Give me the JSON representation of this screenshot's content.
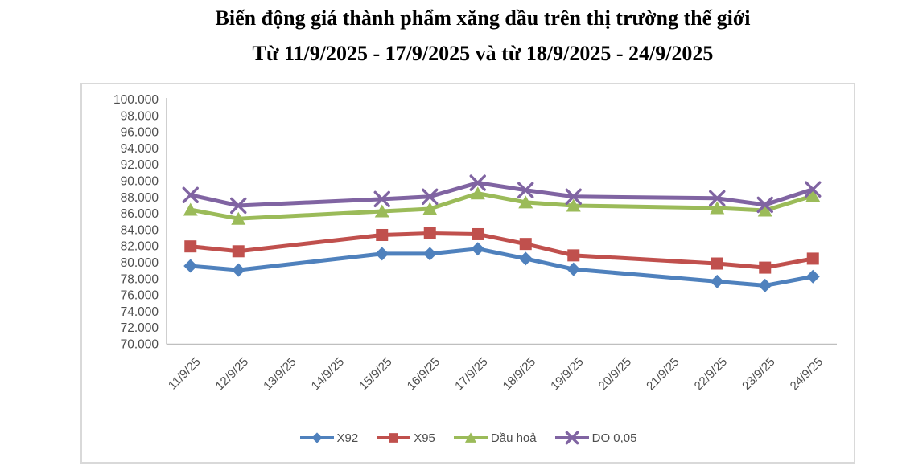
{
  "title": {
    "line1": "Biến động giá thành phẩm xăng dầu trên thị trường thế giới",
    "line2": "Từ 11/9/2025 - 17/9/2025 và từ 18/9/2025 - 24/9/2025"
  },
  "chart_data": {
    "type": "line",
    "categories": [
      "11/9/25",
      "12/9/25",
      "13/9/25",
      "14/9/25",
      "15/9/25",
      "16/9/25",
      "17/9/25",
      "18/9/25",
      "19/9/25",
      "20/9/25",
      "21/9/25",
      "22/9/25",
      "23/9/25",
      "24/9/25"
    ],
    "series": [
      {
        "name": "X92",
        "marker": "diamond",
        "color": "#4F81BD",
        "values": [
          79600,
          79100,
          null,
          null,
          81100,
          81100,
          81700,
          80500,
          79200,
          null,
          null,
          77700,
          77200,
          78300
        ]
      },
      {
        "name": "X95",
        "marker": "square",
        "color": "#C0504D",
        "values": [
          82000,
          81400,
          null,
          null,
          83400,
          83600,
          83500,
          82300,
          80900,
          null,
          null,
          79900,
          79400,
          80500
        ]
      },
      {
        "name": "Dầu hoả",
        "marker": "triangle",
        "color": "#9BBB59",
        "values": [
          86500,
          85400,
          null,
          null,
          86300,
          86600,
          88500,
          87400,
          87000,
          null,
          null,
          86700,
          86400,
          88200
        ]
      },
      {
        "name": "DO 0,05",
        "marker": "x",
        "color": "#8064A2",
        "values": [
          88300,
          87000,
          null,
          null,
          87800,
          88100,
          89800,
          88900,
          88100,
          null,
          null,
          87900,
          87100,
          89000
        ]
      }
    ],
    "ylim": [
      70000,
      100000
    ],
    "ytick_step": 2000,
    "ytick_labels": [
      "100.000",
      "98.000",
      "96.000",
      "94.000",
      "92.000",
      "90.000",
      "88.000",
      "86.000",
      "84.000",
      "82.000",
      "80.000",
      "78.000",
      "76.000",
      "74.000",
      "72.000",
      "70.000"
    ],
    "grid": false,
    "legend_position": "bottom",
    "axis_color": "#BFBFBF",
    "label_color": "#4d4d4d"
  }
}
